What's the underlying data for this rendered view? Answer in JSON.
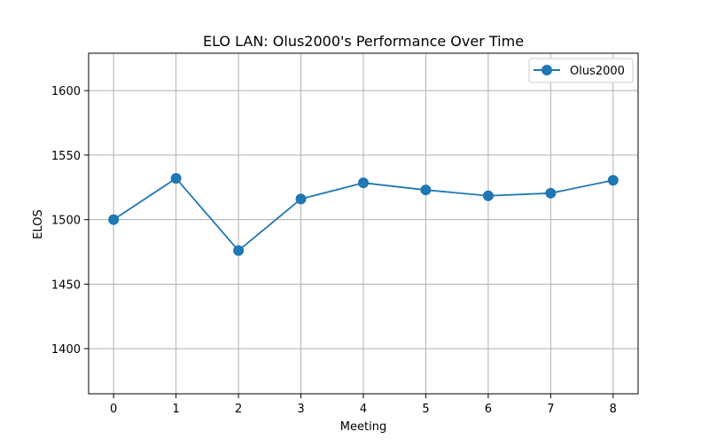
{
  "chart_data": {
    "type": "line",
    "title": "ELO LAN: Olus2000's Performance Over Time",
    "xlabel": "Meeting",
    "ylabel": "ELOS",
    "x": [
      0,
      1,
      2,
      3,
      4,
      5,
      6,
      7,
      8
    ],
    "xlim": [
      -0.4,
      8.4
    ],
    "ylim": [
      1365,
      1629
    ],
    "xticks": [
      "0",
      "1",
      "2",
      "3",
      "4",
      "5",
      "6",
      "7",
      "8"
    ],
    "yticks": [
      "1400",
      "1450",
      "1500",
      "1550",
      "1600"
    ],
    "grid": true,
    "legend_position": "top-right",
    "series": [
      {
        "name": "Olus2000",
        "color": "#1f77b4",
        "marker": "circle",
        "values": [
          1500,
          1532,
          1476,
          1516,
          1528.5,
          1523,
          1518.5,
          1520.5,
          1530.5
        ]
      }
    ]
  }
}
